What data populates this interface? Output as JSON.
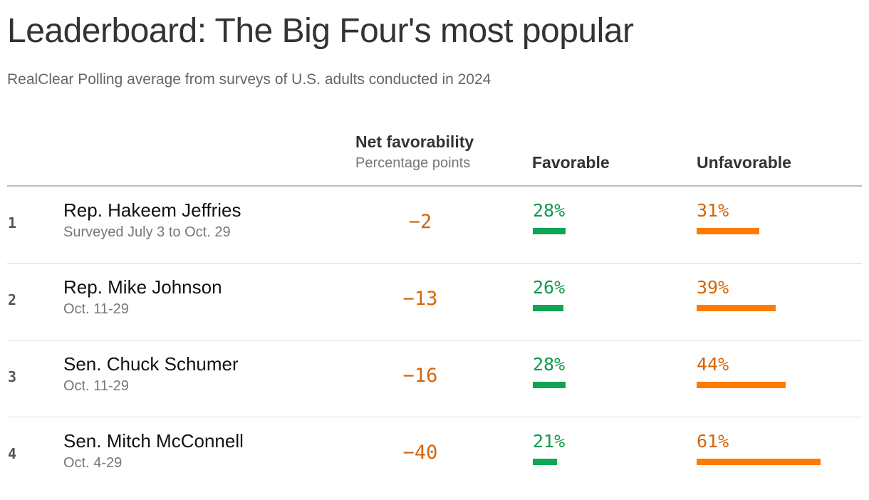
{
  "title": "Leaderboard: The Big Four's most popular",
  "subtitle": "RealClear Polling average from surveys of U.S. adults conducted in 2024",
  "colors": {
    "favorable": "#0ea653",
    "unfavorable": "#ff7a00",
    "net_text": "#d4660a"
  },
  "chart_data": {
    "type": "table",
    "columns": {
      "net": "Net favorability",
      "net_unit": "Percentage points",
      "favorable": "Favorable",
      "unfavorable": "Unfavorable"
    },
    "rows": [
      {
        "rank": "1",
        "name": "Rep. Hakeem Jeffries",
        "dates": "Surveyed July 3 to Oct. 29",
        "net": -2,
        "net_label": "−2",
        "favorable": 28,
        "favorable_label": "28%",
        "unfavorable": 31,
        "unfavorable_label": "31%"
      },
      {
        "rank": "2",
        "name": "Rep. Mike Johnson",
        "dates": "Oct. 11-29",
        "net": -13,
        "net_label": "−13",
        "favorable": 26,
        "favorable_label": "26%",
        "unfavorable": 39,
        "unfavorable_label": "39%"
      },
      {
        "rank": "3",
        "name": "Sen. Chuck Schumer",
        "dates": "Oct. 11-29",
        "net": -16,
        "net_label": "−16",
        "favorable": 28,
        "favorable_label": "28%",
        "unfavorable": 44,
        "unfavorable_label": "44%"
      },
      {
        "rank": "4",
        "name": "Sen. Mitch McConnell",
        "dates": "Oct. 4-29",
        "net": -40,
        "net_label": "−40",
        "favorable": 21,
        "favorable_label": "21%",
        "unfavorable": 61,
        "unfavorable_label": "61%"
      }
    ]
  }
}
